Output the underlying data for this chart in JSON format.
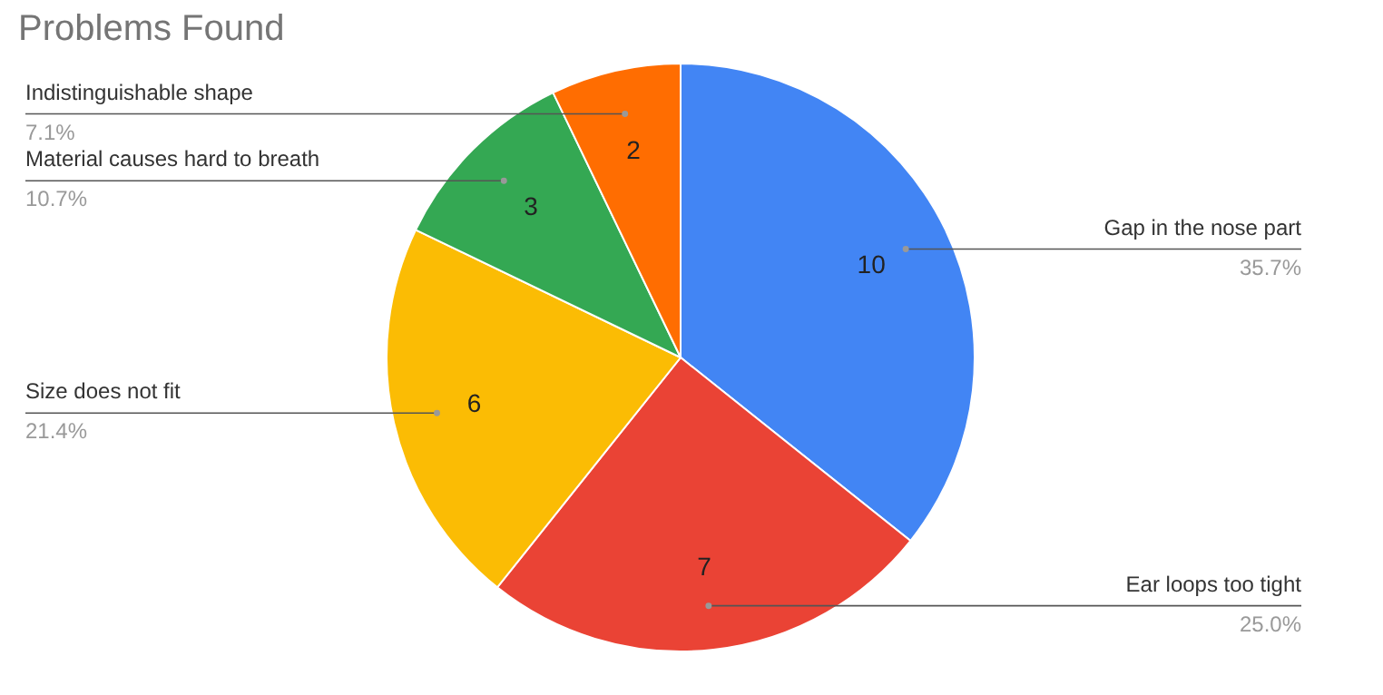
{
  "chart_data": {
    "type": "pie",
    "title": "Problems Found",
    "categories": [
      "Gap in the nose part",
      "Ear loops too tight",
      "Size does not fit",
      "Material causes hard to breath",
      "Indistinguishable shape"
    ],
    "values": [
      10,
      7,
      6,
      3,
      2
    ],
    "colors": [
      "#4285f4",
      "#ea4335",
      "#fbbc04",
      "#34a853",
      "#ff6d01"
    ],
    "data_labels": true,
    "annotations": [
      "35.7%",
      "25.0%",
      "21.4%",
      "10.7%",
      "7.1%"
    ]
  }
}
